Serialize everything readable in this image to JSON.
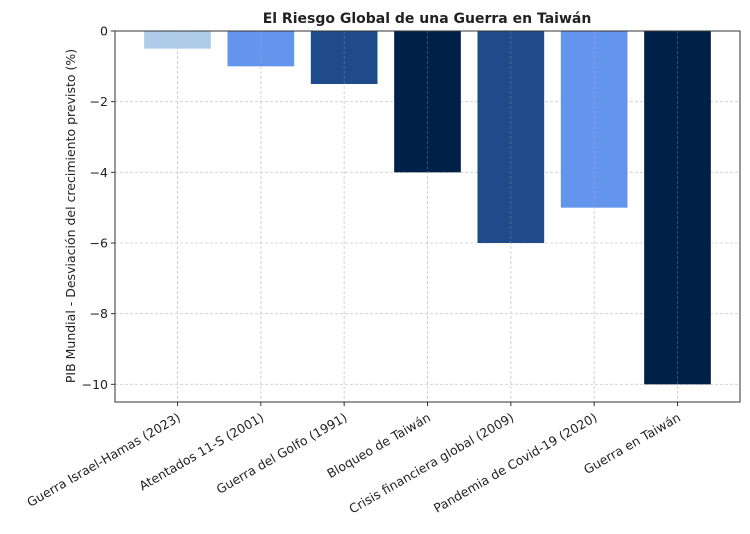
{
  "chart_data": {
    "type": "bar",
    "title": "El Riesgo Global de una Guerra en Taiwán",
    "xlabel": "",
    "ylabel": "PIB Mundial - Desviación del crecimiento previsto (%)",
    "categories": [
      "Guerra Israel-Hamas (2023)",
      "Atentados 11-S (2001)",
      "Guerra del Golfo (1991)",
      "Bloqueo de Taiwán",
      "Crisis financiera global (2009)",
      "Pandemia de Covid-19 (2020)",
      "Guerra en Taiwán"
    ],
    "values": [
      -0.5,
      -1,
      -1.5,
      -4,
      -6,
      -5,
      -10
    ],
    "colors": [
      "#aecbea",
      "#6495ed",
      "#1f4b8a",
      "#002147",
      "#1f4b8a",
      "#6495ed",
      "#002147"
    ],
    "ylim": [
      -10.5,
      0
    ],
    "yticks": [
      0,
      -2,
      -4,
      -6,
      -8,
      -10
    ],
    "ytick_labels": [
      "0",
      "−2",
      "−4",
      "−6",
      "−8",
      "−10"
    ],
    "grid": true
  }
}
